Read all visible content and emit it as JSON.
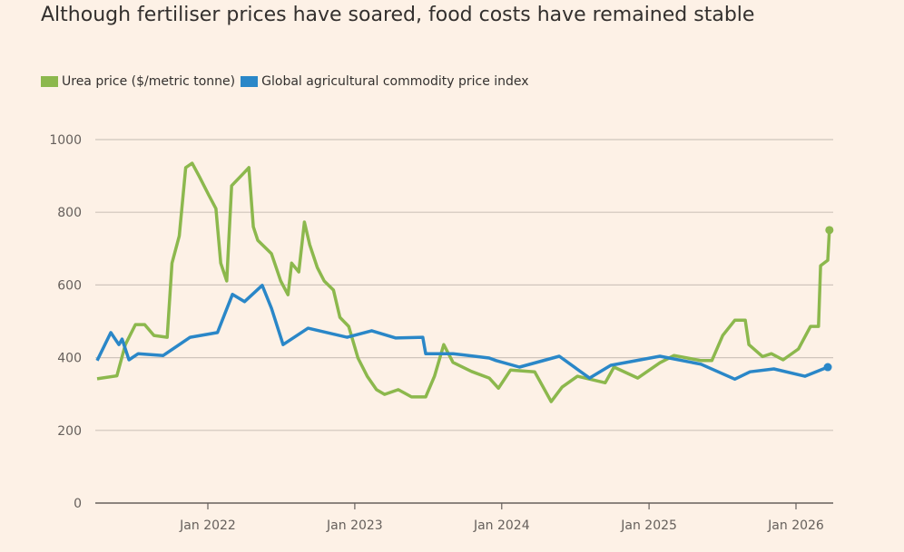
{
  "chart_data": {
    "type": "line",
    "title": "Although fertiliser prices have soared, food costs have remained stable",
    "xlabel": "",
    "ylabel": "",
    "ylim": [
      0,
      1000
    ],
    "yticks": [
      "0",
      "200",
      "400",
      "600",
      "800",
      "1000"
    ],
    "ytick_values": [
      0,
      200,
      400,
      600,
      800,
      1000
    ],
    "xticks": [
      "Jan 2022",
      "Jan 2023",
      "Jan 2024",
      "Jan 2025",
      "Jan 2026"
    ],
    "xtick_values": [
      "2022-01-01",
      "2023-01-01",
      "2024-01-01",
      "2025-01-01",
      "2026-01-01"
    ],
    "xlim": [
      "2021-04-01",
      "2026-04-01"
    ],
    "grid": true,
    "legend_position": "top-left",
    "series": [
      {
        "name": "Urea price ($/metric tonne)",
        "color": "#8cb84d",
        "points": [
          [
            "2021-04-01",
            342
          ],
          [
            "2021-05-20",
            350
          ],
          [
            "2021-06-10",
            436
          ],
          [
            "2021-07-05",
            491
          ],
          [
            "2021-07-28",
            491
          ],
          [
            "2021-08-20",
            461
          ],
          [
            "2021-09-22",
            456
          ],
          [
            "2021-10-04",
            660
          ],
          [
            "2021-10-22",
            735
          ],
          [
            "2021-11-07",
            923
          ],
          [
            "2021-11-23",
            935
          ],
          [
            "2021-12-11",
            898
          ],
          [
            "2022-01-03",
            848
          ],
          [
            "2022-01-21",
            810
          ],
          [
            "2022-02-02",
            660
          ],
          [
            "2022-02-17",
            611
          ],
          [
            "2022-03-01",
            873
          ],
          [
            "2022-04-02",
            910
          ],
          [
            "2022-04-13",
            923
          ],
          [
            "2022-04-24",
            760
          ],
          [
            "2022-05-05",
            723
          ],
          [
            "2022-06-08",
            686
          ],
          [
            "2022-07-01",
            611
          ],
          [
            "2022-07-19",
            573
          ],
          [
            "2022-07-28",
            660
          ],
          [
            "2022-08-15",
            636
          ],
          [
            "2022-08-29",
            773
          ],
          [
            "2022-09-11",
            711
          ],
          [
            "2022-09-30",
            648
          ],
          [
            "2022-10-17",
            611
          ],
          [
            "2022-11-09",
            586
          ],
          [
            "2022-11-25",
            511
          ],
          [
            "2022-12-17",
            486
          ],
          [
            "2023-01-09",
            399
          ],
          [
            "2023-02-01",
            349
          ],
          [
            "2023-02-24",
            312
          ],
          [
            "2023-03-16",
            299
          ],
          [
            "2023-04-19",
            312
          ],
          [
            "2023-05-22",
            292
          ],
          [
            "2023-06-26",
            292
          ],
          [
            "2023-07-18",
            349
          ],
          [
            "2023-08-10",
            436
          ],
          [
            "2023-09-02",
            387
          ],
          [
            "2023-10-18",
            362
          ],
          [
            "2023-12-01",
            344
          ],
          [
            "2023-12-24",
            316
          ],
          [
            "2024-01-23",
            366
          ],
          [
            "2024-03-23",
            361
          ],
          [
            "2024-05-03",
            279
          ],
          [
            "2024-05-30",
            319
          ],
          [
            "2024-07-07",
            349
          ],
          [
            "2024-09-14",
            331
          ],
          [
            "2024-10-06",
            374
          ],
          [
            "2024-12-04",
            344
          ],
          [
            "2025-01-28",
            386
          ],
          [
            "2025-03-04",
            406
          ],
          [
            "2025-05-10",
            392
          ],
          [
            "2025-06-06",
            392
          ],
          [
            "2025-07-03",
            461
          ],
          [
            "2025-08-02",
            503
          ],
          [
            "2025-08-28",
            503
          ],
          [
            "2025-09-06",
            436
          ],
          [
            "2025-10-10",
            403
          ],
          [
            "2025-11-01",
            411
          ],
          [
            "2025-11-30",
            394
          ],
          [
            "2026-01-07",
            424
          ],
          [
            "2026-02-06",
            486
          ],
          [
            "2026-02-26",
            486
          ],
          [
            "2026-03-03",
            653
          ],
          [
            "2026-03-21",
            668
          ],
          [
            "2026-03-25",
            751
          ]
        ]
      },
      {
        "name": "Global agricultural commodity price index",
        "color": "#2a87c8",
        "points": [
          [
            "2021-04-01",
            392
          ],
          [
            "2021-05-05",
            469
          ],
          [
            "2021-05-25",
            436
          ],
          [
            "2021-06-02",
            451
          ],
          [
            "2021-06-19",
            394
          ],
          [
            "2021-07-12",
            411
          ],
          [
            "2021-09-12",
            406
          ],
          [
            "2021-11-18",
            456
          ],
          [
            "2022-01-25",
            469
          ],
          [
            "2022-03-03",
            574
          ],
          [
            "2022-04-02",
            554
          ],
          [
            "2022-05-16",
            599
          ],
          [
            "2022-06-08",
            536
          ],
          [
            "2022-07-07",
            436
          ],
          [
            "2022-09-07",
            481
          ],
          [
            "2022-12-13",
            456
          ],
          [
            "2023-02-12",
            474
          ],
          [
            "2023-04-13",
            454
          ],
          [
            "2023-06-19",
            456
          ],
          [
            "2023-06-26",
            411
          ],
          [
            "2023-09-02",
            411
          ],
          [
            "2023-12-01",
            399
          ],
          [
            "2023-12-18",
            392
          ],
          [
            "2024-02-14",
            374
          ],
          [
            "2024-05-23",
            404
          ],
          [
            "2024-08-06",
            344
          ],
          [
            "2024-09-28",
            379
          ],
          [
            "2025-01-28",
            404
          ],
          [
            "2025-05-10",
            382
          ],
          [
            "2025-08-02",
            341
          ],
          [
            "2025-09-09",
            361
          ],
          [
            "2025-11-07",
            369
          ],
          [
            "2026-01-23",
            349
          ],
          [
            "2026-03-21",
            374
          ]
        ]
      }
    ]
  }
}
